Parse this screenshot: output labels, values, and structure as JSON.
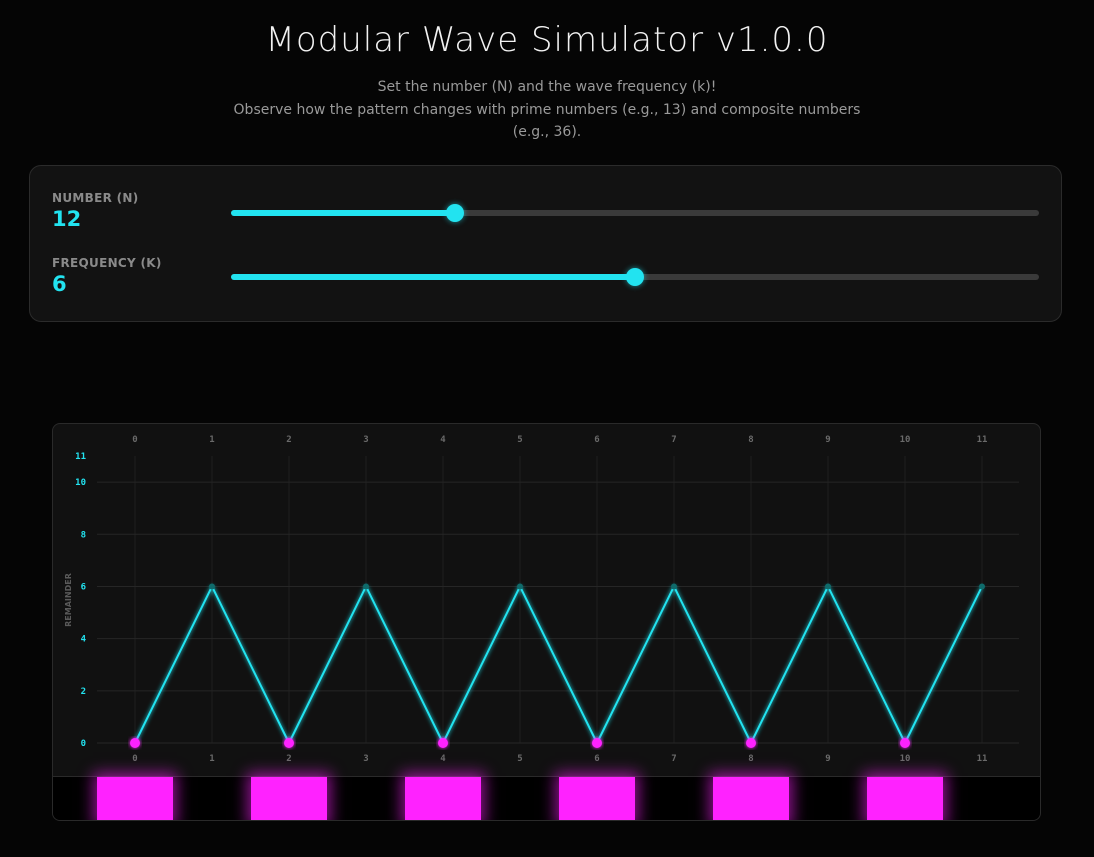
{
  "header": {
    "title": "Modular Wave Simulator v1.0.0",
    "subtitle_line1": "Set the number (N) and the wave frequency (k)!",
    "subtitle_line2": "Observe how the pattern changes with prime numbers (e.g., 13) and composite numbers (e.g., 36)."
  },
  "controls": {
    "number": {
      "label": "NUMBER (N)",
      "value": "12",
      "fraction": 0.277
    },
    "frequency": {
      "label": "FREQUENCY (K)",
      "value": "6",
      "fraction": 0.5
    }
  },
  "colors": {
    "accent": "#22e3f0",
    "zero_marker": "#ff22ff",
    "background": "#050505",
    "panel": "#121212"
  },
  "chart_data": {
    "type": "line",
    "x": [
      0,
      1,
      2,
      3,
      4,
      5,
      6,
      7,
      8,
      9,
      10,
      11
    ],
    "x_tick_labels": [
      "0",
      "1",
      "2",
      "3",
      "4",
      "5",
      "6",
      "7",
      "8",
      "9",
      "10",
      "11"
    ],
    "y": [
      0,
      6,
      0,
      6,
      0,
      6,
      0,
      6,
      0,
      6,
      0,
      6
    ],
    "ylabel": "REMAINDER",
    "y_tick_labels": [
      "0",
      "2",
      "4",
      "6",
      "8",
      "10",
      "11"
    ],
    "ylim": [
      0,
      11
    ],
    "grid": true,
    "zero_highlight": [
      true,
      false,
      true,
      false,
      true,
      false,
      true,
      false,
      true,
      false,
      true,
      false
    ]
  }
}
